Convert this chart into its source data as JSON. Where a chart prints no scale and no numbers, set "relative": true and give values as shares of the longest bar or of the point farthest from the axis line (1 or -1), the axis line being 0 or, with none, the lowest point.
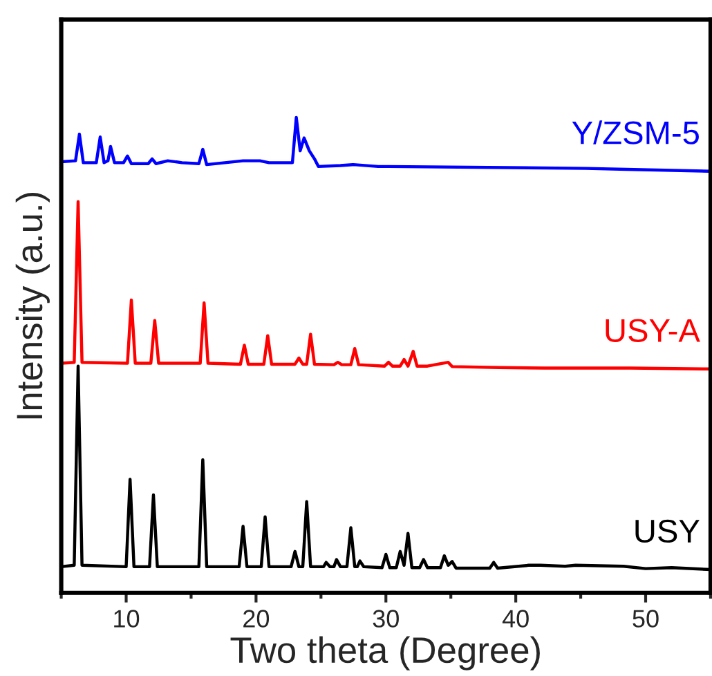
{
  "chart_data": {
    "type": "line",
    "relative": true,
    "xlabel": "Two theta (Degree)",
    "ylabel": "Intensity (a.u.)",
    "xlim": [
      5,
      55
    ],
    "xticks": [
      {
        "value": 5,
        "label": null
      },
      10,
      {
        "value": 15,
        "label": null
      },
      20,
      {
        "value": 25,
        "label": null
      },
      30,
      {
        "value": 35,
        "label": null
      },
      40,
      {
        "value": 45,
        "label": null
      },
      50,
      {
        "value": 55,
        "label": null
      }
    ],
    "grid": false,
    "legend": false,
    "marker": "none",
    "line_style": "solid",
    "series": [
      {
        "name": "USY",
        "color": "#000000",
        "x": [
          5.0,
          6.0,
          6.3,
          6.6,
          10.0,
          10.3,
          10.6,
          11.8,
          12.1,
          12.4,
          15.6,
          15.9,
          16.2,
          18.7,
          19.0,
          19.3,
          20.4,
          20.7,
          21.0,
          22.7,
          23.0,
          23.3,
          23.6,
          23.9,
          24.2,
          25.2,
          25.4,
          25.7,
          26.0,
          26.2,
          26.5,
          27.0,
          27.3,
          27.6,
          27.8,
          28.0,
          28.3,
          29.7,
          30.0,
          30.3,
          30.8,
          31.1,
          31.4,
          31.7,
          32.0,
          32.6,
          32.9,
          33.2,
          34.2,
          34.5,
          34.8,
          35.1,
          35.4,
          38.0,
          38.3,
          38.6,
          41.0,
          41.9,
          43.8,
          44.6,
          48.3,
          50.0,
          52.0,
          55.0
        ],
        "values": [
          0.055,
          0.058,
          0.477,
          0.058,
          0.055,
          0.239,
          0.055,
          0.055,
          0.206,
          0.055,
          0.055,
          0.28,
          0.055,
          0.055,
          0.14,
          0.055,
          0.055,
          0.16,
          0.055,
          0.055,
          0.087,
          0.055,
          0.055,
          0.192,
          0.055,
          0.055,
          0.064,
          0.055,
          0.055,
          0.07,
          0.055,
          0.055,
          0.137,
          0.055,
          0.055,
          0.067,
          0.055,
          0.053,
          0.081,
          0.053,
          0.053,
          0.087,
          0.058,
          0.125,
          0.053,
          0.053,
          0.07,
          0.053,
          0.053,
          0.078,
          0.058,
          0.066,
          0.052,
          0.052,
          0.064,
          0.052,
          0.058,
          0.058,
          0.056,
          0.058,
          0.056,
          0.051,
          0.053,
          0.049
        ]
      },
      {
        "name": "USY-A",
        "color": "#ff0000",
        "x": [
          5.0,
          6.0,
          6.3,
          6.6,
          10.1,
          10.4,
          10.7,
          11.9,
          12.2,
          12.5,
          15.7,
          16.0,
          16.3,
          18.8,
          19.1,
          19.4,
          20.6,
          20.9,
          21.2,
          23.0,
          23.3,
          23.6,
          23.9,
          24.2,
          24.5,
          26.0,
          26.3,
          26.6,
          27.3,
          27.6,
          27.9,
          29.9,
          30.2,
          30.5,
          31.1,
          31.4,
          31.7,
          32.1,
          32.4,
          33.2,
          34.8,
          35.1,
          38.7,
          42.2,
          44.7,
          48.8,
          55.0
        ],
        "values": [
          0.483,
          0.485,
          0.823,
          0.485,
          0.483,
          0.616,
          0.483,
          0.483,
          0.573,
          0.483,
          0.483,
          0.61,
          0.483,
          0.481,
          0.521,
          0.481,
          0.481,
          0.541,
          0.481,
          0.481,
          0.494,
          0.481,
          0.481,
          0.544,
          0.481,
          0.48,
          0.485,
          0.48,
          0.48,
          0.514,
          0.48,
          0.477,
          0.485,
          0.477,
          0.477,
          0.491,
          0.477,
          0.508,
          0.477,
          0.477,
          0.485,
          0.476,
          0.474,
          0.473,
          0.473,
          0.473,
          0.471
        ]
      },
      {
        "name": "Y/ZSM-5",
        "color": "#0000ff",
        "x": [
          5.0,
          6.1,
          6.4,
          6.7,
          7.7,
          8.0,
          8.3,
          8.6,
          8.8,
          9.1,
          9.8,
          10.1,
          10.4,
          11.7,
          12.0,
          12.3,
          13.2,
          14.3,
          15.6,
          15.9,
          16.2,
          19.0,
          20.3,
          21.0,
          22.8,
          23.1,
          23.4,
          23.7,
          24.1,
          24.5,
          24.8,
          26.5,
          27.5,
          29.4,
          30.2,
          45.4,
          48.5,
          55.0
        ],
        "values": [
          0.907,
          0.909,
          0.965,
          0.905,
          0.905,
          0.959,
          0.905,
          0.909,
          0.939,
          0.905,
          0.905,
          0.919,
          0.903,
          0.903,
          0.913,
          0.903,
          0.909,
          0.905,
          0.903,
          0.933,
          0.901,
          0.909,
          0.909,
          0.905,
          0.905,
          1.0,
          0.93,
          0.957,
          0.93,
          0.913,
          0.897,
          0.899,
          0.901,
          0.897,
          0.897,
          0.893,
          0.891,
          0.887
        ]
      }
    ]
  }
}
